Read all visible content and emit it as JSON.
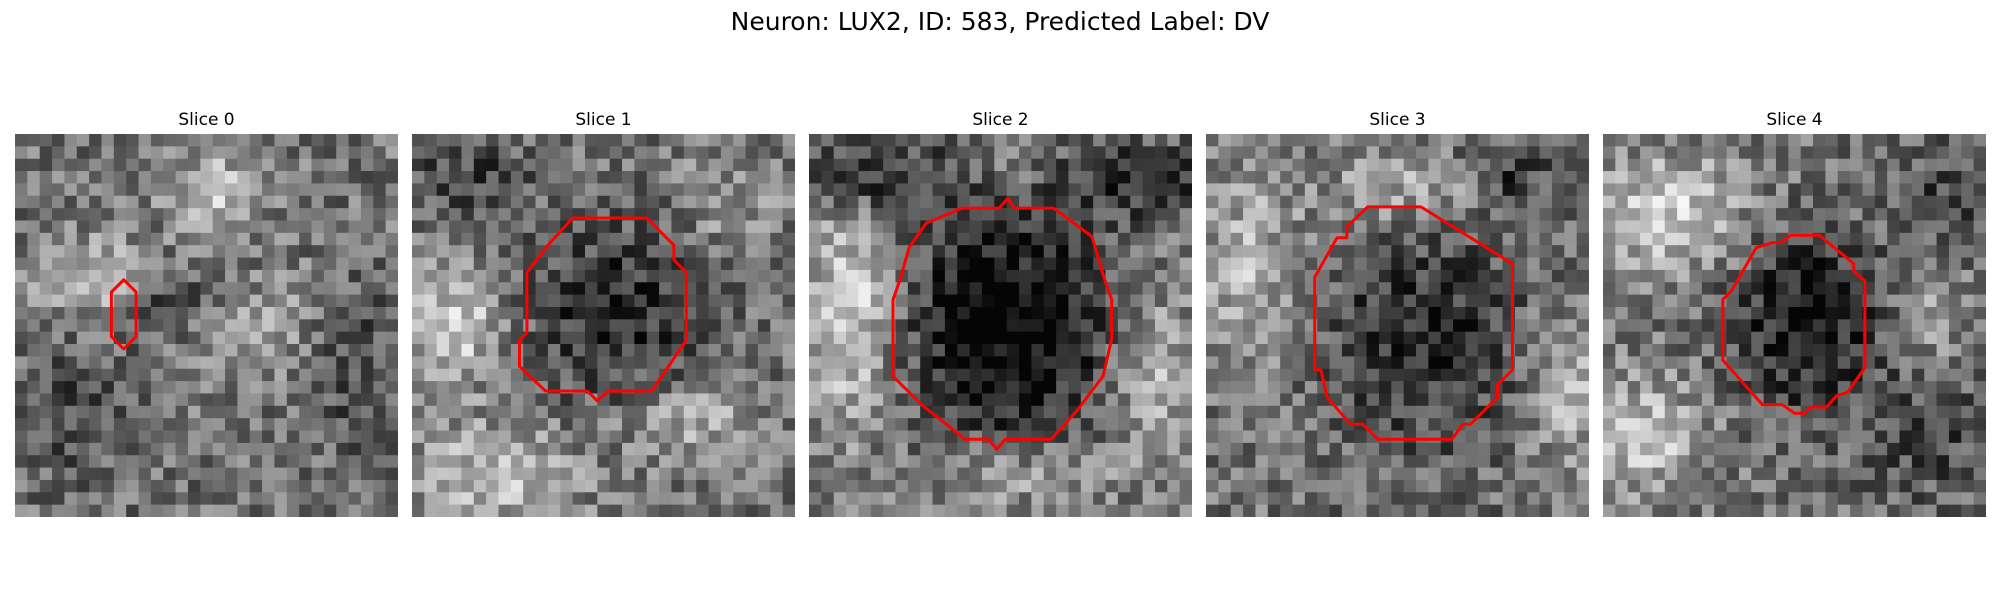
{
  "title": "Neuron: LUX2, ID: 583, Predicted Label: DV",
  "slices": [
    {
      "label": "Slice 0"
    },
    {
      "label": "Slice 1"
    },
    {
      "label": "Slice 2"
    },
    {
      "label": "Slice 3"
    },
    {
      "label": "Slice 4"
    }
  ],
  "contour_color": "#ff0000"
}
